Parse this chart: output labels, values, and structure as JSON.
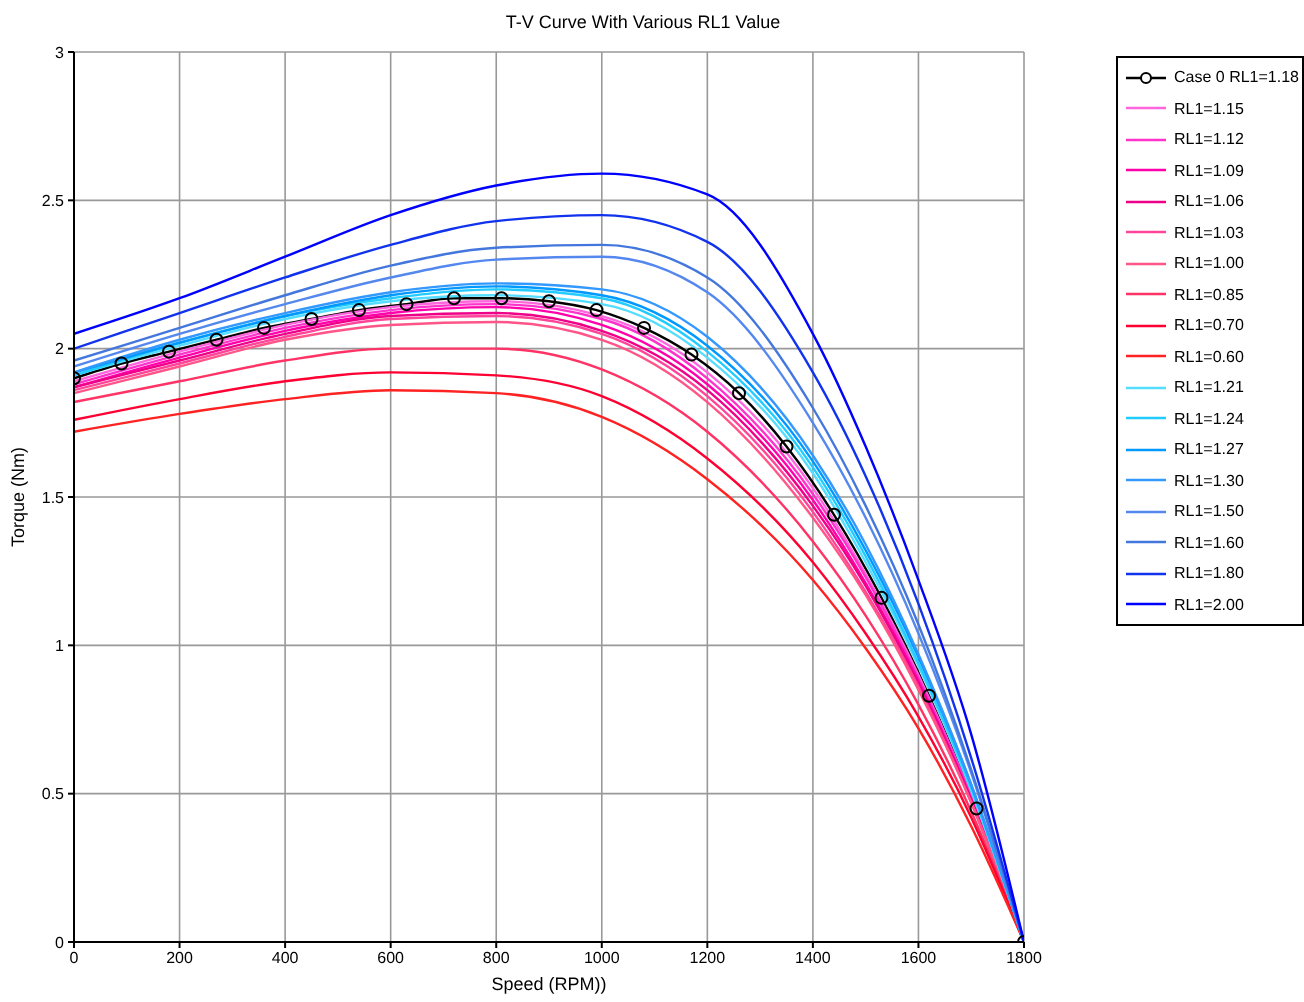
{
  "chart_data": {
    "type": "line",
    "title": "T-V Curve With Various RL1 Value",
    "xlabel": "Speed (RPM))",
    "ylabel": "Torque (Nm)",
    "x": [
      0,
      200,
      400,
      600,
      800,
      1000,
      1200,
      1400,
      1500,
      1600,
      1700,
      1800
    ],
    "xlim": [
      0,
      1800
    ],
    "xticks": [
      0,
      200,
      400,
      600,
      800,
      1000,
      1200,
      1400,
      1600,
      1800
    ],
    "ylim": [
      0,
      3
    ],
    "yticks": [
      0,
      0.5,
      1,
      1.5,
      2,
      2.5,
      3
    ],
    "grid": true,
    "legend": "top right",
    "marker": "none",
    "line_style": "solid",
    "series": [
      {
        "name": "Case 0 RL1=1.18",
        "color": "#000000",
        "marker": "circle",
        "x": [
          0,
          90,
          180,
          270,
          360,
          450,
          540,
          630,
          720,
          810,
          900,
          990,
          1080,
          1170,
          1260,
          1350,
          1440,
          1530,
          1620,
          1710,
          1800
        ],
        "values": [
          1.9,
          1.95,
          1.99,
          2.03,
          2.07,
          2.1,
          2.13,
          2.15,
          2.17,
          2.17,
          2.16,
          2.13,
          2.07,
          1.98,
          1.85,
          1.67,
          1.44,
          1.16,
          0.83,
          0.45,
          0
        ]
      },
      {
        "name": "RL1=1.15",
        "color": "#ff66dd",
        "values": [
          1.89,
          1.99,
          2.08,
          2.14,
          2.16,
          2.11,
          1.92,
          1.53,
          1.24,
          0.9,
          0.49,
          0
        ]
      },
      {
        "name": "RL1=1.12",
        "color": "#ff33cc",
        "values": [
          1.88,
          1.98,
          2.07,
          2.13,
          2.15,
          2.1,
          1.9,
          1.51,
          1.23,
          0.89,
          0.49,
          0
        ]
      },
      {
        "name": "RL1=1.09",
        "color": "#ff00aa",
        "values": [
          1.87,
          1.97,
          2.06,
          2.12,
          2.14,
          2.08,
          1.88,
          1.49,
          1.21,
          0.88,
          0.48,
          0
        ]
      },
      {
        "name": "RL1=1.06",
        "color": "#ee0088",
        "values": [
          1.87,
          1.96,
          2.05,
          2.11,
          2.12,
          2.06,
          1.86,
          1.47,
          1.2,
          0.87,
          0.48,
          0
        ]
      },
      {
        "name": "RL1=1.03",
        "color": "#ff4499",
        "values": [
          1.86,
          1.95,
          2.04,
          2.1,
          2.11,
          2.05,
          1.84,
          1.45,
          1.18,
          0.86,
          0.47,
          0
        ]
      },
      {
        "name": "RL1=1.00",
        "color": "#ff5588",
        "values": [
          1.85,
          1.94,
          2.03,
          2.08,
          2.09,
          2.03,
          1.82,
          1.43,
          1.17,
          0.85,
          0.47,
          0
        ]
      },
      {
        "name": "RL1=0.85",
        "color": "#ff3366",
        "values": [
          1.82,
          1.89,
          1.96,
          2.0,
          2.0,
          1.93,
          1.72,
          1.35,
          1.1,
          0.8,
          0.44,
          0
        ]
      },
      {
        "name": "RL1=0.70",
        "color": "#ff0033",
        "values": [
          1.76,
          1.83,
          1.89,
          1.92,
          1.91,
          1.84,
          1.63,
          1.28,
          1.04,
          0.76,
          0.42,
          0
        ]
      },
      {
        "name": "RL1=0.60",
        "color": "#ff2222",
        "values": [
          1.72,
          1.78,
          1.83,
          1.86,
          1.85,
          1.77,
          1.56,
          1.22,
          0.99,
          0.72,
          0.39,
          0
        ]
      },
      {
        "name": "RL1=1.21",
        "color": "#55ddff",
        "values": [
          1.91,
          2.01,
          2.1,
          2.16,
          2.18,
          2.15,
          1.97,
          1.58,
          1.28,
          0.93,
          0.51,
          0
        ]
      },
      {
        "name": "RL1=1.24",
        "color": "#22ccff",
        "values": [
          1.91,
          2.02,
          2.11,
          2.17,
          2.2,
          2.17,
          1.99,
          1.6,
          1.3,
          0.94,
          0.52,
          0
        ]
      },
      {
        "name": "RL1=1.27",
        "color": "#0099ff",
        "values": [
          1.92,
          2.02,
          2.11,
          2.18,
          2.21,
          2.18,
          2.01,
          1.62,
          1.32,
          0.96,
          0.53,
          0
        ]
      },
      {
        "name": "RL1=1.30",
        "color": "#3399ff",
        "values": [
          1.92,
          2.03,
          2.12,
          2.19,
          2.22,
          2.2,
          2.04,
          1.64,
          1.34,
          0.97,
          0.53,
          0
        ]
      },
      {
        "name": "RL1=1.50",
        "color": "#5588ee",
        "values": [
          1.94,
          2.05,
          2.15,
          2.24,
          2.3,
          2.31,
          2.19,
          1.75,
          1.43,
          1.04,
          0.57,
          0
        ]
      },
      {
        "name": "RL1=1.60",
        "color": "#4477dd",
        "values": [
          1.96,
          2.07,
          2.18,
          2.28,
          2.34,
          2.35,
          2.24,
          1.8,
          1.47,
          1.07,
          0.58,
          0
        ]
      },
      {
        "name": "RL1=1.80",
        "color": "#1133ee",
        "values": [
          2.0,
          2.12,
          2.24,
          2.35,
          2.43,
          2.45,
          2.36,
          1.92,
          1.57,
          1.14,
          0.62,
          0
        ]
      },
      {
        "name": "RL1=2.00",
        "color": "#0000ff",
        "values": [
          2.05,
          2.17,
          2.31,
          2.45,
          2.55,
          2.59,
          2.52,
          2.05,
          1.67,
          1.22,
          0.7,
          0
        ]
      }
    ]
  }
}
